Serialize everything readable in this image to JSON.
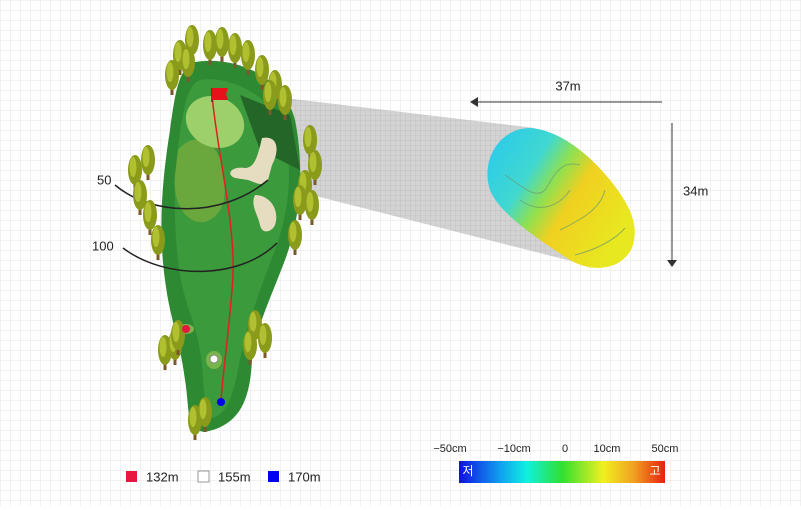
{
  "green_size": {
    "width": "37m",
    "depth": "34m"
  },
  "distance_markers": [
    "50",
    "100"
  ],
  "tees": [
    {
      "label": "132m",
      "color": "#e8173f"
    },
    {
      "label": "155m",
      "color": "#ffffff"
    },
    {
      "label": "170m",
      "color": "#0000ee"
    }
  ],
  "elevation_scale": {
    "ticks": [
      "−50cm",
      "−10cm",
      "0",
      "10cm",
      "50cm"
    ],
    "low": "저",
    "high": "고"
  }
}
